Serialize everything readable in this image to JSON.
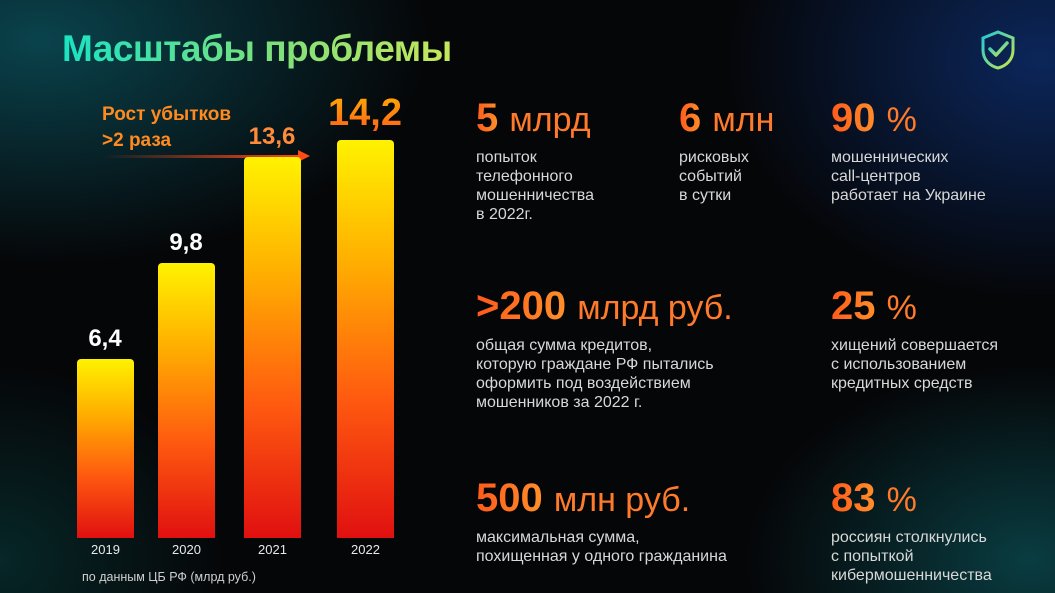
{
  "title": "Масштабы проблемы",
  "logo_icon": "shield-check-icon",
  "growth_label": {
    "line1": "Рост убытков",
    "line2": ">2 раза"
  },
  "source": "по данным ЦБ РФ (млрд руб.)",
  "chart_data": {
    "type": "bar",
    "categories": [
      "2019",
      "2020",
      "2021",
      "2022"
    ],
    "values": [
      6.4,
      9.8,
      13.6,
      14.2
    ],
    "value_labels": [
      "6,4",
      "9,8",
      "13,6",
      "14,2"
    ],
    "ylim": [
      0,
      16
    ],
    "grid": false,
    "annotation": "Рост убытков >2 раза"
  },
  "stats": [
    {
      "num": "5",
      "unit": "млрд",
      "desc": [
        "попыток",
        "телефонного",
        "мошенничества",
        "в 2022г."
      ]
    },
    {
      "num": "6",
      "unit": "млн",
      "desc": [
        "рисковых",
        "событий",
        "в сутки"
      ]
    },
    {
      "num": "90",
      "unit": "%",
      "desc": [
        "мошеннических",
        "call-центров",
        "работает на Украине"
      ]
    },
    {
      "num": ">200",
      "unit": "млрд руб.",
      "desc": [
        "общая сумма кредитов,",
        "которую граждане РФ пытались",
        "оформить под воздействием",
        "мошенников за 2022 г."
      ]
    },
    {
      "num": "25",
      "unit": "%",
      "desc": [
        "хищений совершается",
        "с использованием",
        "кредитных средств"
      ]
    },
    {
      "num": "500",
      "unit": "млн руб.",
      "desc": [
        "максимальная сумма,",
        "похищенная у одного гражданина"
      ]
    },
    {
      "num": "83",
      "unit": "%",
      "desc": [
        "россиян столкнулись",
        "с попыткой",
        "кибермошенничества"
      ]
    }
  ],
  "colors": {
    "accent": "#ff6a1e",
    "title_start": "#19e3c2",
    "title_end": "#c6e85a",
    "bar_top": "#fff200",
    "bar_bottom": "#e01010"
  }
}
